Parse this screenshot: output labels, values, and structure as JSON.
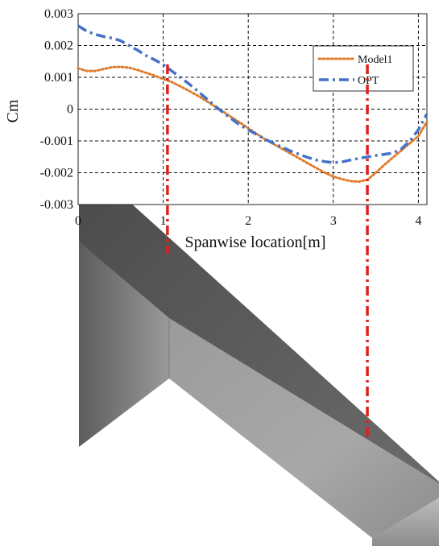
{
  "chart_data": {
    "type": "line",
    "title": "",
    "xlabel": "Spanwise location[m]",
    "ylabel": "Cm",
    "xlim": [
      0,
      4.1
    ],
    "ylim": [
      -0.003,
      0.003
    ],
    "xticks": [
      0,
      1,
      2,
      3,
      4
    ],
    "yticks": [
      0.003,
      0.002,
      0.001,
      0,
      -0.001,
      -0.002,
      -0.003
    ],
    "ytick_labels": [
      "0.003",
      "0.002",
      "0.001",
      "0",
      "-0.001",
      "-0.002",
      "-0.003"
    ],
    "grid": true,
    "grid_style": "dashed",
    "legend_position": "top-right",
    "series": [
      {
        "name": "Model1",
        "color": "#E07B2A",
        "style": "dotted",
        "x": [
          0.0,
          0.1,
          0.2,
          0.3,
          0.4,
          0.5,
          0.6,
          0.7,
          0.8,
          0.9,
          1.0,
          1.1,
          1.2,
          1.3,
          1.4,
          1.5,
          1.6,
          1.7,
          1.8,
          1.9,
          2.0,
          2.1,
          2.2,
          2.3,
          2.4,
          2.5,
          2.6,
          2.7,
          2.8,
          2.9,
          3.0,
          3.1,
          3.2,
          3.3,
          3.4,
          3.5,
          3.6,
          3.7,
          3.8,
          3.9,
          4.0,
          4.1
        ],
        "y": [
          0.00128,
          0.0012,
          0.0012,
          0.00126,
          0.00132,
          0.00133,
          0.0013,
          0.00123,
          0.00114,
          0.00105,
          0.00095,
          0.00085,
          0.00072,
          0.00058,
          0.00043,
          0.00027,
          0.0001,
          -7e-05,
          -0.00025,
          -0.00042,
          -0.0006,
          -0.00078,
          -0.00095,
          -0.0011,
          -0.00125,
          -0.0014,
          -0.00155,
          -0.0017,
          -0.00185,
          -0.002,
          -0.00212,
          -0.0022,
          -0.00226,
          -0.00228,
          -0.00222,
          -0.002,
          -0.00175,
          -0.00152,
          -0.0013,
          -0.00107,
          -0.00085,
          -0.0004
        ]
      },
      {
        "name": "OPT",
        "color": "#4472C4",
        "style": "dash-dot",
        "x": [
          0.0,
          0.1,
          0.2,
          0.3,
          0.4,
          0.5,
          0.6,
          0.7,
          0.8,
          0.9,
          1.0,
          1.1,
          1.2,
          1.3,
          1.4,
          1.5,
          1.6,
          1.7,
          1.8,
          1.9,
          2.0,
          2.1,
          2.2,
          2.3,
          2.4,
          2.5,
          2.6,
          2.7,
          2.8,
          2.9,
          3.0,
          3.1,
          3.2,
          3.3,
          3.4,
          3.5,
          3.6,
          3.7,
          3.8,
          3.9,
          4.0,
          4.1
        ],
        "y": [
          0.00262,
          0.00245,
          0.00235,
          0.00228,
          0.00223,
          0.00215,
          0.002,
          0.00185,
          0.00168,
          0.00155,
          0.0014,
          0.0012,
          0.001,
          0.0008,
          0.00058,
          0.00035,
          0.00012,
          -0.0001,
          -0.0003,
          -0.0005,
          -0.00065,
          -0.0008,
          -0.00095,
          -0.00108,
          -0.0012,
          -0.00132,
          -0.00142,
          -0.00152,
          -0.0016,
          -0.00165,
          -0.00168,
          -0.00166,
          -0.0016,
          -0.00155,
          -0.0015,
          -0.00146,
          -0.00142,
          -0.00138,
          -0.00125,
          -0.001,
          -0.00065,
          -0.00015
        ]
      }
    ],
    "reference_lines": [
      {
        "x": 1.05,
        "color": "#E02020",
        "style": "dash-dot"
      },
      {
        "x": 3.4,
        "color": "#E02020",
        "style": "dash-dot"
      }
    ]
  }
}
